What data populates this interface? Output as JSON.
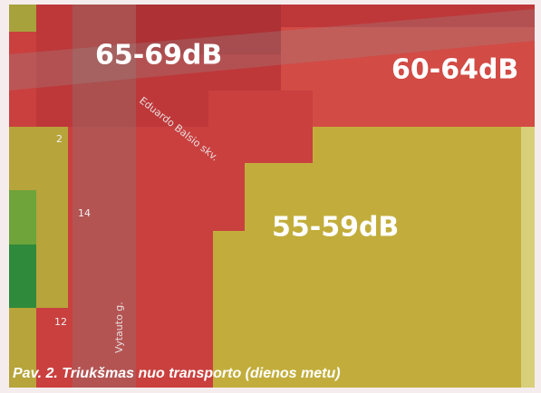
{
  "zones": [
    {
      "label": "65-69dB"
    },
    {
      "label": "60-64dB"
    },
    {
      "label": "55-59dB"
    }
  ],
  "streets": [
    "Eduardo Balsio skv.",
    "Vytauto g."
  ],
  "house_numbers": [
    "2",
    "14",
    "12"
  ],
  "caption": "Pav. 2. Triukšmas nuo transporto (dienos metu)"
}
